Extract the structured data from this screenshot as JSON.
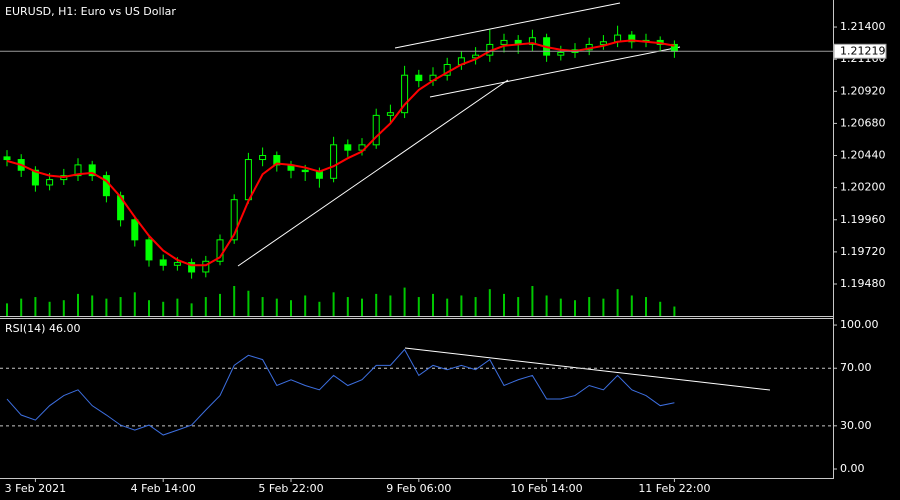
{
  "chart_data": [
    {
      "type": "candlestick",
      "title": "EURUSD, H1:  Euro vs US Dollar",
      "open": [
        1.2043,
        1.2041,
        1.2033,
        1.2022,
        1.2026,
        1.2029,
        1.2037,
        1.2029,
        1.2014,
        1.1996,
        1.1981,
        1.1966,
        1.1962,
        1.1964,
        1.1957,
        1.1965,
        1.1981,
        1.2011,
        1.2041,
        1.2044,
        1.2037,
        1.2033,
        1.2032,
        1.2027,
        1.2052,
        1.2048,
        1.2052,
        1.2074,
        1.2076,
        1.2104,
        1.21,
        1.2104,
        1.2112,
        1.2117,
        1.2119,
        1.2127,
        1.213,
        1.2127,
        1.2132,
        1.2119,
        1.2121,
        1.2123,
        1.2127,
        1.2129,
        1.2134,
        1.2129,
        1.213,
        1.2127
      ],
      "high": [
        1.2048,
        1.2045,
        1.2036,
        1.2031,
        1.2034,
        1.2042,
        1.204,
        1.2032,
        1.2017,
        1.1999,
        1.1984,
        1.197,
        1.1968,
        1.1967,
        1.1969,
        1.1985,
        1.2015,
        1.2046,
        1.205,
        1.2047,
        1.204,
        1.2037,
        1.2035,
        1.2058,
        1.2056,
        1.2057,
        1.2079,
        1.2082,
        1.2111,
        1.2108,
        1.211,
        1.2117,
        1.2122,
        1.2125,
        1.2138,
        1.2135,
        1.2134,
        1.2138,
        1.2135,
        1.2126,
        1.2128,
        1.2132,
        1.2134,
        1.2141,
        1.2137,
        1.2135,
        1.2133,
        1.213
      ],
      "low": [
        1.2036,
        1.2028,
        1.2017,
        1.2018,
        1.2022,
        1.2025,
        1.2025,
        1.2009,
        1.1991,
        1.1976,
        1.1961,
        1.1958,
        1.1958,
        1.1952,
        1.1953,
        1.1962,
        1.1978,
        1.2008,
        1.2036,
        1.2032,
        1.2027,
        1.2025,
        1.202,
        1.2024,
        1.2043,
        1.2044,
        1.2049,
        1.2068,
        1.2072,
        1.2095,
        1.2096,
        1.21,
        1.2108,
        1.2112,
        1.2114,
        1.2121,
        1.212,
        1.2122,
        1.2114,
        1.2115,
        1.2117,
        1.2119,
        1.2123,
        1.2125,
        1.2124,
        1.2125,
        1.2122,
        1.2117
      ],
      "close": [
        1.2041,
        1.2033,
        1.2022,
        1.2026,
        1.2029,
        1.2037,
        1.2029,
        1.2014,
        1.1996,
        1.1981,
        1.1966,
        1.1962,
        1.1964,
        1.1957,
        1.1965,
        1.1981,
        1.2011,
        1.2041,
        1.2044,
        1.2037,
        1.2033,
        1.2032,
        1.2027,
        1.2052,
        1.2048,
        1.2052,
        1.2074,
        1.2076,
        1.2104,
        1.21,
        1.2104,
        1.2112,
        1.2117,
        1.2119,
        1.2127,
        1.213,
        1.2127,
        1.2132,
        1.2119,
        1.2121,
        1.2123,
        1.2127,
        1.2129,
        1.2134,
        1.2129,
        1.213,
        1.2127,
        1.21219
      ],
      "up_color": "#00ff00",
      "down_color": "#00ff00",
      "ma": {
        "color": "#ff0000",
        "values": [
          1.204,
          1.2037,
          1.2032,
          1.2029,
          1.2028,
          1.203,
          1.2031,
          1.2025,
          1.2013,
          1.1998,
          1.1984,
          1.1973,
          1.1966,
          1.1962,
          1.1962,
          1.1968,
          1.1985,
          1.201,
          1.203,
          1.2038,
          1.2037,
          1.2035,
          1.2032,
          1.2036,
          1.2042,
          1.2047,
          1.2058,
          1.2068,
          1.2082,
          1.2093,
          1.21,
          1.2106,
          1.2112,
          1.2116,
          1.2122,
          1.2126,
          1.2127,
          1.2128,
          1.2125,
          1.2123,
          1.2122,
          1.2124,
          1.2126,
          1.2129,
          1.213,
          1.2129,
          1.2128,
          1.2126
        ]
      },
      "volume": {
        "color": "#00c800",
        "values": [
          40,
          55,
          60,
          45,
          50,
          70,
          65,
          55,
          60,
          75,
          50,
          45,
          55,
          40,
          60,
          70,
          95,
          80,
          60,
          55,
          50,
          65,
          45,
          75,
          60,
          55,
          70,
          65,
          90,
          60,
          70,
          55,
          65,
          60,
          85,
          70,
          60,
          95,
          65,
          55,
          50,
          60,
          55,
          85,
          65,
          60,
          45,
          30
        ]
      },
      "current_price": {
        "value": 1.21219,
        "label": "1.21219"
      },
      "ylim": [
        1.19241,
        1.21602
      ],
      "yticks": [
        {
          "value": 1.214,
          "label": "1.21400"
        },
        {
          "value": 1.2116,
          "label": "1.21160"
        },
        {
          "value": 1.2092,
          "label": "1.20920"
        },
        {
          "value": 1.2068,
          "label": "1.20680"
        },
        {
          "value": 1.2044,
          "label": "1.20440"
        },
        {
          "value": 1.202,
          "label": "1.20200"
        },
        {
          "value": 1.1996,
          "label": "1.19960"
        },
        {
          "value": 1.1972,
          "label": "1.19720"
        },
        {
          "value": 1.1948,
          "label": "1.19480"
        }
      ]
    },
    {
      "type": "line",
      "title": "RSI(14) 46.00",
      "categories": [
        null,
        null,
        "3 Feb 2021",
        null,
        null,
        null,
        null,
        null,
        null,
        null,
        null,
        "4 Feb 14:00",
        null,
        null,
        null,
        null,
        null,
        null,
        null,
        null,
        "5 Feb 22:00",
        null,
        null,
        null,
        null,
        null,
        null,
        null,
        null,
        "9 Feb 06:00",
        null,
        null,
        null,
        null,
        null,
        null,
        null,
        null,
        "10 Feb 14:00",
        null,
        null,
        null,
        null,
        null,
        null,
        null,
        null,
        "11 Feb 22:00"
      ],
      "series": [
        {
          "name": "RSI(14)",
          "color": "#3d6fe0",
          "values": [
            48.6,
            37.5,
            34,
            44,
            51,
            55,
            44,
            37.5,
            30.5,
            27,
            30.5,
            23.6,
            27,
            30.5,
            41,
            51,
            72,
            79,
            76,
            58,
            62,
            58,
            55,
            65,
            58,
            62,
            72,
            72,
            83,
            65,
            72,
            69,
            72,
            69,
            76,
            58,
            62,
            65,
            48.6,
            48.6,
            51,
            58,
            55,
            65,
            55,
            51,
            44,
            46
          ]
        }
      ],
      "levels": [
        70,
        30
      ],
      "ylim": [
        -6.25,
        104.9
      ],
      "yticks": [
        {
          "value": 100,
          "label": "100.00"
        },
        {
          "value": 70,
          "label": "70.00"
        },
        {
          "value": 30,
          "label": "30.00"
        },
        {
          "value": 0,
          "label": "0.00"
        }
      ]
    }
  ]
}
